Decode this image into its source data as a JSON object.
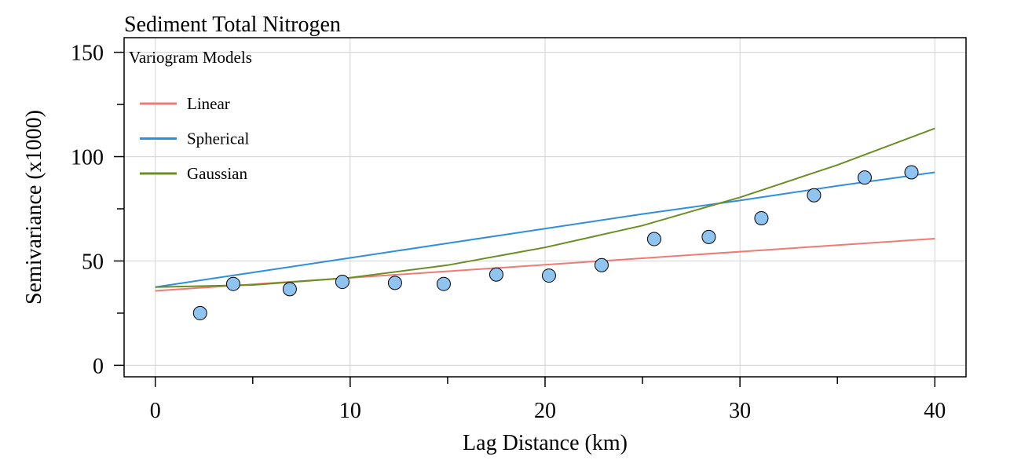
{
  "chart_data": {
    "type": "scatter",
    "title": "Sediment Total Nitrogen",
    "xlabel": "Lag Distance (km)",
    "ylabel": "Semivariance (x1000)",
    "xlim": [
      -1.6,
      41.6
    ],
    "ylim": [
      -5.5,
      157
    ],
    "x_ticks": [
      0,
      10,
      20,
      30,
      40
    ],
    "x_minor_ticks": [
      5,
      15,
      25,
      35
    ],
    "y_ticks": [
      0,
      50,
      100,
      150
    ],
    "y_minor_ticks": [
      25,
      75,
      125
    ],
    "grid": true,
    "legend": {
      "title": "Variogram Models",
      "position": "top-left",
      "entries": [
        "Linear",
        "Spherical",
        "Gaussian"
      ]
    },
    "points": {
      "x": [
        2.3,
        4.0,
        6.9,
        9.6,
        12.3,
        14.8,
        17.5,
        20.2,
        22.9,
        25.6,
        28.4,
        31.1,
        33.8,
        36.4,
        38.8
      ],
      "y": [
        25,
        39,
        36.5,
        40,
        39.5,
        39,
        43.5,
        43,
        48,
        60.5,
        61.5,
        70.5,
        81.5,
        90,
        92.5
      ],
      "fill": "#8fc3f0",
      "stroke": "#000000"
    },
    "series": [
      {
        "name": "Linear",
        "color": "#f07a74",
        "x": [
          0,
          40
        ],
        "y": [
          35.7,
          60.7
        ]
      },
      {
        "name": "Spherical",
        "color": "#2f8ee0",
        "x": [
          0,
          5,
          10,
          15,
          20,
          25,
          30,
          35,
          40
        ],
        "y": [
          37.5,
          44.5,
          51.5,
          58.5,
          65.5,
          72.5,
          79,
          86,
          92.5
        ]
      },
      {
        "name": "Gaussian",
        "color": "#6b8e23",
        "x": [
          0,
          5,
          10,
          15,
          20,
          25,
          30,
          35,
          40
        ],
        "y": [
          37.5,
          38.5,
          42,
          48,
          56.5,
          67,
          80.5,
          96,
          113.5
        ]
      }
    ]
  }
}
